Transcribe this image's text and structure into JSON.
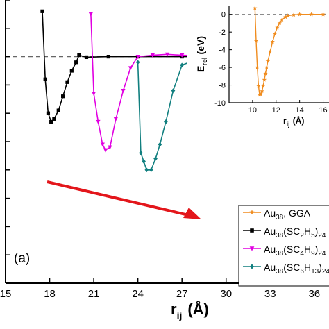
{
  "chart_data": [
    {
      "type": "line",
      "xlabel_main": "r",
      "xlabel_sub": "ij",
      "xlabel_unit": "(Å)",
      "xlim": [
        15,
        37
      ],
      "ylim": [
        -8,
        2
      ],
      "xticks": [
        15,
        18,
        21,
        24,
        27,
        30,
        33,
        36
      ],
      "reference_line_y": 0,
      "panel_label": "(a)",
      "legend_position": "bottom-right",
      "series": [
        {
          "name": "Au38(SC2H5)24",
          "legend_parts": [
            "Au",
            "38",
            "(SC",
            "2",
            "H",
            "5",
            ")",
            "24"
          ],
          "color": "#000000",
          "marker": "square",
          "x": [
            17.5,
            17.7,
            17.9,
            18.1,
            18.3,
            18.6,
            18.9,
            19.2,
            19.5,
            19.8,
            20.0,
            20.5,
            22.0,
            24.0,
            27.0,
            30.0,
            35.0,
            37.0
          ],
          "y": [
            1.6,
            -0.8,
            -2.0,
            -2.3,
            -2.2,
            -1.9,
            -1.4,
            -0.9,
            -0.5,
            -0.2,
            0.05,
            -0.02,
            0.0,
            0.0,
            0.0,
            0.0,
            0.0,
            0.0
          ]
        },
        {
          "name": "Au38(SC4H9)24",
          "legend_parts": [
            "Au",
            "38",
            "(SC",
            "4",
            "H",
            "9",
            ")",
            "24"
          ],
          "color": "#e100e1",
          "marker": "triangle-down",
          "x": [
            20.8,
            21.0,
            21.3,
            21.6,
            21.8,
            22.1,
            22.5,
            23.0,
            23.5,
            24.0,
            25.0,
            26.0,
            27.0,
            30.0,
            35.0,
            37.0
          ],
          "y": [
            1.5,
            -1.3,
            -2.3,
            -3.1,
            -3.3,
            -3.2,
            -2.2,
            -1.2,
            -0.4,
            0.0,
            0.05,
            0.08,
            0.05,
            0.0,
            0.0,
            0.0
          ]
        },
        {
          "name": "Au38(SC6H13)24",
          "legend_parts": [
            "Au",
            "38",
            "(SC",
            "6",
            "H",
            "13",
            ")",
            "24"
          ],
          "color": "#117f7f",
          "marker": "diamond",
          "x": [
            24.0,
            24.2,
            24.4,
            24.6,
            24.9,
            25.2,
            25.5,
            25.9,
            26.4,
            27.0,
            28.0,
            30.0,
            35.0,
            37.0
          ],
          "y": [
            -0.2,
            -3.4,
            -3.7,
            -4.0,
            -4.0,
            -3.6,
            -3.1,
            -2.3,
            -1.2,
            -0.3,
            -0.1,
            0.0,
            0.0,
            0.0
          ]
        },
        {
          "name": "Au38, GGA",
          "legend_parts": [
            "Au",
            "38",
            ", GGA"
          ],
          "color": "#f08c1e",
          "marker": "star",
          "x": [],
          "y": []
        }
      ],
      "annotation": "red arrow pointing down-right from the curve minima"
    },
    {
      "type": "line",
      "position": "inset-top-right",
      "ylabel_main": "E",
      "ylabel_sub": "rel",
      "ylabel_unit": "(eV)",
      "xlabel_main": "r",
      "xlabel_sub": "ij",
      "xlabel_unit": "(Å)",
      "xlim": [
        8,
        16.5
      ],
      "ylim": [
        -10,
        1
      ],
      "xticks": [
        10,
        12,
        14,
        16
      ],
      "yticks": [
        0,
        -2,
        -4,
        -6,
        -8,
        -10
      ],
      "reference_line_y": 0,
      "series": [
        {
          "name": "Au38, GGA",
          "color": "#f08c1e",
          "marker": "star",
          "x": [
            10.2,
            10.3,
            10.4,
            10.5,
            10.6,
            10.7,
            10.8,
            10.9,
            11.0,
            11.1,
            11.2,
            11.3,
            11.5,
            11.7,
            11.9,
            12.1,
            12.3,
            12.5,
            12.8,
            13.0,
            13.5,
            14.0,
            15.0,
            16.0
          ],
          "y": [
            0.7,
            -3.0,
            -6.0,
            -8.1,
            -9.1,
            -9.05,
            -8.7,
            -8.1,
            -7.4,
            -6.7,
            -6.0,
            -5.3,
            -4.2,
            -3.1,
            -2.2,
            -1.5,
            -1.0,
            -0.6,
            -0.3,
            -0.15,
            -0.05,
            0.0,
            0.0,
            0.0
          ]
        }
      ]
    }
  ]
}
